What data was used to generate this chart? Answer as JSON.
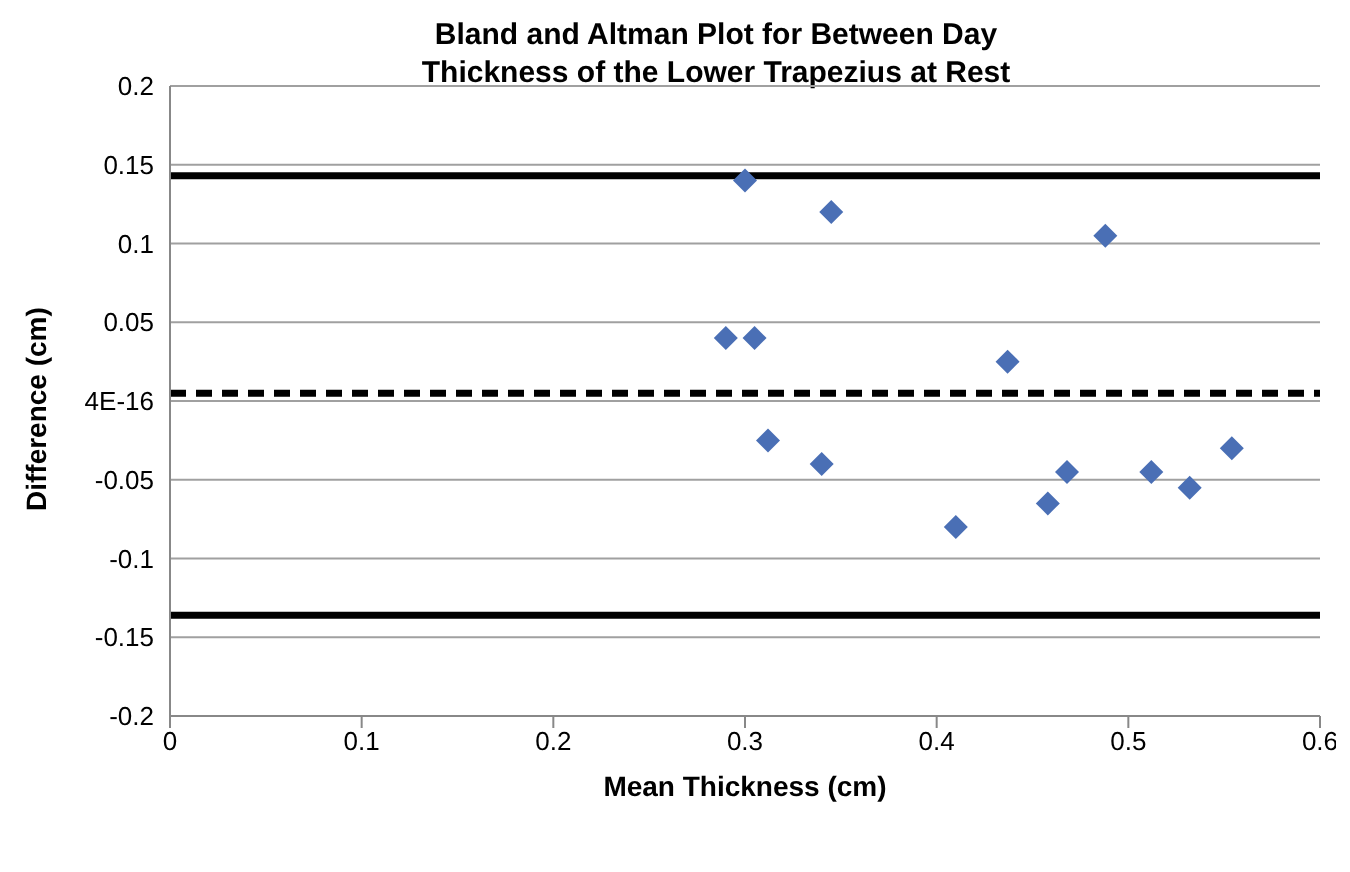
{
  "chart_data": {
    "type": "scatter",
    "title": "Bland and Altman Plot for Between Day\nThickness of the Lower Trapezius at Rest",
    "xlabel": "Mean Thickness (cm)",
    "ylabel": "Difference (cm)",
    "x": [
      0.29,
      0.3,
      0.305,
      0.312,
      0.34,
      0.345,
      0.41,
      0.437,
      0.458,
      0.468,
      0.488,
      0.512,
      0.532,
      0.554
    ],
    "series": [
      {
        "color": "#4a6fb5",
        "values": [
          0.04,
          0.14,
          0.04,
          -0.025,
          -0.04,
          0.12,
          -0.08,
          0.025,
          -0.065,
          -0.045,
          0.105,
          -0.045,
          -0.055,
          -0.03
        ]
      }
    ],
    "xlim": [
      0,
      0.6
    ],
    "xticks": [
      0,
      0.1,
      0.2,
      0.3,
      0.4,
      0.5,
      0.6
    ],
    "ylim": [
      -0.2,
      0.2
    ],
    "yticks": [
      -0.2,
      -0.15,
      -0.1,
      -0.05,
      {
        "value": 0,
        "label": "4E-16"
      },
      0.05,
      0.1,
      0.15,
      0.2
    ],
    "grid": "y",
    "marker": "diamond",
    "legend": false,
    "ref_lines": [
      {
        "axis": "y",
        "value": 0.143,
        "color": "#000000",
        "line_style": "solid"
      },
      {
        "axis": "y",
        "value": 0.005,
        "color": "#000000",
        "line_style": "dashed"
      },
      {
        "axis": "y",
        "value": -0.136,
        "color": "#000000",
        "line_style": "solid"
      }
    ]
  }
}
